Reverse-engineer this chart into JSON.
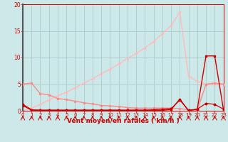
{
  "x": [
    0,
    1,
    2,
    3,
    4,
    5,
    6,
    7,
    8,
    9,
    10,
    11,
    12,
    13,
    14,
    15,
    16,
    17,
    18,
    19,
    20,
    21,
    22,
    23
  ],
  "line_triangle_y": [
    0.0,
    0.5,
    1.2,
    2.0,
    2.8,
    3.5,
    4.3,
    5.2,
    6.0,
    7.0,
    7.8,
    8.8,
    9.8,
    10.8,
    11.8,
    13.0,
    14.5,
    16.0,
    18.5,
    6.5,
    5.5,
    5.0,
    5.0,
    5.0
  ],
  "line_med_pink_y": [
    5.0,
    5.2,
    3.2,
    3.0,
    2.3,
    2.1,
    1.8,
    1.5,
    1.3,
    1.0,
    0.9,
    0.8,
    0.6,
    0.5,
    0.5,
    0.5,
    0.5,
    0.5,
    0.4,
    0.2,
    0.1,
    5.0,
    5.2,
    5.0
  ],
  "line_dark_low_y": [
    1.2,
    0.2,
    0.1,
    0.1,
    0.1,
    0.1,
    0.1,
    0.1,
    0.1,
    0.1,
    0.1,
    0.1,
    0.1,
    0.1,
    0.1,
    0.2,
    0.3,
    0.4,
    2.0,
    0.1,
    0.3,
    1.4,
    1.2,
    0.3
  ],
  "line_dark_spike_y": [
    1.0,
    0.1,
    0.1,
    0.1,
    0.1,
    0.1,
    0.1,
    0.1,
    0.1,
    0.1,
    0.1,
    0.1,
    0.1,
    0.1,
    0.1,
    0.1,
    0.1,
    0.2,
    2.2,
    0.0,
    0.3,
    10.3,
    10.3,
    0.2
  ],
  "bg_color": "#cce8e8",
  "grid_color": "#aacccc",
  "color_light_pink": "#ffbbbb",
  "color_med_pink": "#ff8888",
  "color_dark_red": "#cc0000",
  "xlabel": "Vent moyen/en rafales ( km/h )",
  "xlim": [
    0,
    23
  ],
  "ylim": [
    0,
    20
  ],
  "yticks": [
    0,
    5,
    10,
    15,
    20
  ],
  "xticks": [
    0,
    1,
    2,
    3,
    4,
    5,
    6,
    7,
    8,
    9,
    10,
    11,
    12,
    13,
    14,
    15,
    16,
    17,
    18,
    19,
    20,
    21,
    22,
    23
  ]
}
